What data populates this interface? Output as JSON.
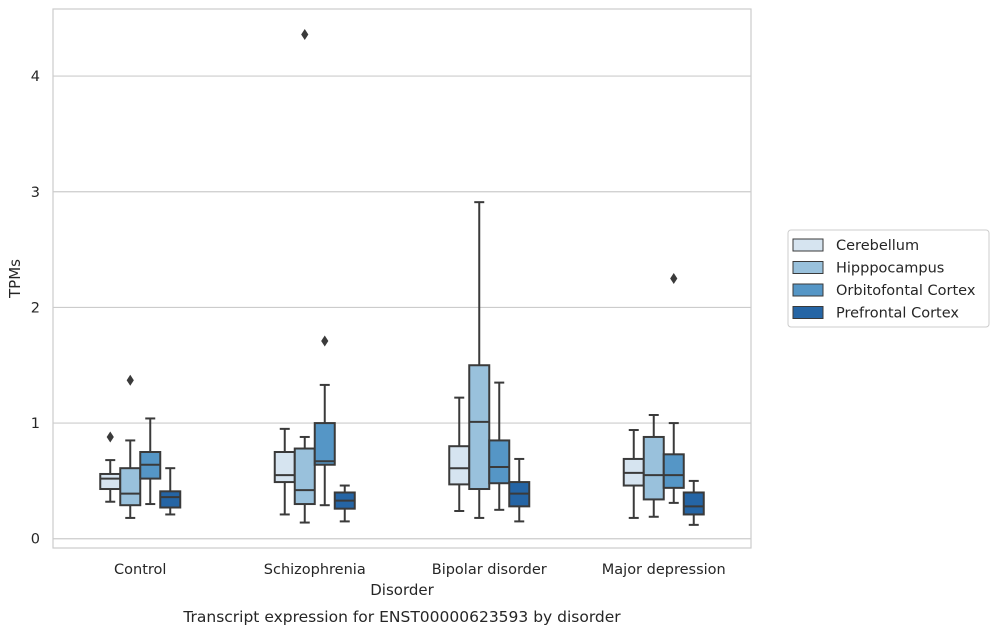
{
  "chart_data": {
    "type": "boxplot",
    "title": "Transcript expression for ENST00000623593 by disorder",
    "xlabel": "Disorder",
    "ylabel": "TPMs",
    "ylim": [
      -0.08,
      4.58
    ],
    "yticks": [
      0,
      1,
      2,
      3,
      4
    ],
    "grid": "horizontal",
    "legend_position": "right",
    "categories": [
      "Control",
      "Schizophrenia",
      "Bipolar disorder",
      "Major depression"
    ],
    "series": [
      {
        "name": "Cerebellum",
        "color": "#d6e4f0",
        "boxes": [
          {
            "whisker_low": 0.32,
            "q1": 0.43,
            "median": 0.52,
            "q3": 0.56,
            "whisker_high": 0.68,
            "outliers": [
              0.88
            ]
          },
          {
            "whisker_low": 0.21,
            "q1": 0.49,
            "median": 0.55,
            "q3": 0.75,
            "whisker_high": 0.95,
            "outliers": []
          },
          {
            "whisker_low": 0.24,
            "q1": 0.47,
            "median": 0.61,
            "q3": 0.8,
            "whisker_high": 1.22,
            "outliers": []
          },
          {
            "whisker_low": 0.18,
            "q1": 0.46,
            "median": 0.57,
            "q3": 0.69,
            "whisker_high": 0.94,
            "outliers": []
          }
        ]
      },
      {
        "name": "Hipppocampus",
        "color": "#99c1dc",
        "boxes": [
          {
            "whisker_low": 0.18,
            "q1": 0.29,
            "median": 0.39,
            "q3": 0.61,
            "whisker_high": 0.85,
            "outliers": [
              1.37
            ]
          },
          {
            "whisker_low": 0.14,
            "q1": 0.3,
            "median": 0.42,
            "q3": 0.78,
            "whisker_high": 0.88,
            "outliers": [
              4.36
            ]
          },
          {
            "whisker_low": 0.18,
            "q1": 0.43,
            "median": 1.01,
            "q3": 1.5,
            "whisker_high": 2.91,
            "outliers": []
          },
          {
            "whisker_low": 0.19,
            "q1": 0.34,
            "median": 0.55,
            "q3": 0.88,
            "whisker_high": 1.07,
            "outliers": []
          }
        ]
      },
      {
        "name": "Orbitofontal Cortex",
        "color": "#5596c6",
        "boxes": [
          {
            "whisker_low": 0.3,
            "q1": 0.52,
            "median": 0.64,
            "q3": 0.75,
            "whisker_high": 1.04,
            "outliers": []
          },
          {
            "whisker_low": 0.29,
            "q1": 0.64,
            "median": 0.67,
            "q3": 1.0,
            "whisker_high": 1.33,
            "outliers": [
              1.71
            ]
          },
          {
            "whisker_low": 0.25,
            "q1": 0.48,
            "median": 0.62,
            "q3": 0.85,
            "whisker_high": 1.35,
            "outliers": []
          },
          {
            "whisker_low": 0.31,
            "q1": 0.44,
            "median": 0.55,
            "q3": 0.73,
            "whisker_high": 1.0,
            "outliers": [
              2.25
            ]
          }
        ]
      },
      {
        "name": "Prefrontal Cortex",
        "color": "#2565a5",
        "boxes": [
          {
            "whisker_low": 0.21,
            "q1": 0.27,
            "median": 0.36,
            "q3": 0.41,
            "whisker_high": 0.61,
            "outliers": []
          },
          {
            "whisker_low": 0.15,
            "q1": 0.26,
            "median": 0.33,
            "q3": 0.4,
            "whisker_high": 0.46,
            "outliers": []
          },
          {
            "whisker_low": 0.15,
            "q1": 0.28,
            "median": 0.39,
            "q3": 0.49,
            "whisker_high": 0.69,
            "outliers": []
          },
          {
            "whisker_low": 0.12,
            "q1": 0.21,
            "median": 0.28,
            "q3": 0.4,
            "whisker_high": 0.5,
            "outliers": []
          }
        ]
      }
    ]
  }
}
